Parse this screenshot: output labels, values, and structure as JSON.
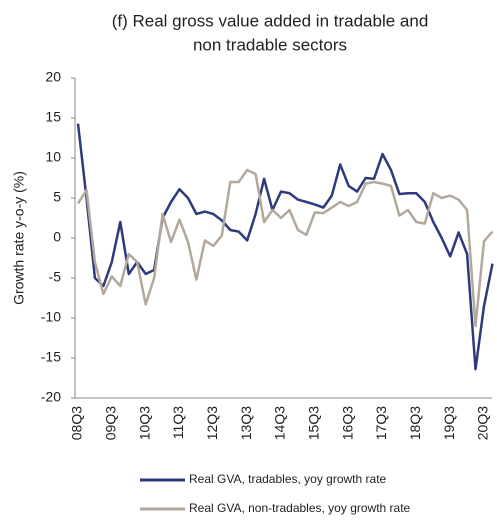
{
  "chart_data": {
    "type": "line",
    "title": [
      "(f) Real gross value added in tradable and",
      "non tradable sectors"
    ],
    "y_label": "Growth rate y-o-y (%)",
    "categories": [
      "08Q3",
      null,
      null,
      null,
      "09Q3",
      null,
      null,
      null,
      "10Q3",
      null,
      null,
      null,
      "11Q3",
      null,
      null,
      null,
      "12Q3",
      null,
      null,
      null,
      "13Q3",
      null,
      null,
      null,
      "14Q3",
      null,
      null,
      null,
      "15Q3",
      null,
      null,
      null,
      "16Q3",
      null,
      null,
      null,
      "17Q3",
      null,
      null,
      null,
      "18Q3",
      null,
      null,
      null,
      "19Q3",
      null,
      null,
      null,
      "20Q3",
      null
    ],
    "series": [
      {
        "name": "Real GVA, tradables, yoy growth rate",
        "color": "#2e3a7a",
        "values": [
          14.3,
          5,
          -5,
          -6,
          -3,
          2,
          -4.5,
          -3,
          -4.5,
          -4,
          2.5,
          4.5,
          6.1,
          5,
          3,
          3.3,
          3,
          2.2,
          1,
          0.8,
          -0.3,
          3,
          7.4,
          3.5,
          5.8,
          5.6,
          4.8,
          4.5,
          4.2,
          3.8,
          5.3,
          9.2,
          6.5,
          5.8,
          7.5,
          7.4,
          10.5,
          8.5,
          5.5,
          5.6,
          5.6,
          4.5,
          2,
          0,
          -2.3,
          0.7,
          -2,
          -16.4,
          -8.5,
          -3.2
        ]
      },
      {
        "name": "Real GVA, non-tradables, yoy growth rate",
        "color": "#b3a89c",
        "values": [
          4.3,
          6,
          -3,
          -7,
          -4.8,
          -6,
          -2,
          -3,
          -8.3,
          -5,
          3,
          -0.5,
          2.3,
          -0.5,
          -5.2,
          -0.3,
          -1,
          0.3,
          7,
          7,
          8.5,
          8,
          2,
          3.5,
          2.5,
          3.5,
          1,
          0.4,
          3.2,
          3.1,
          3.8,
          4.5,
          4,
          4.5,
          6.8,
          7,
          6.8,
          6.5,
          2.8,
          3.5,
          2,
          1.8,
          5.6,
          5,
          5.3,
          4.8,
          3.5,
          -11,
          -0.4,
          0.8
        ]
      }
    ],
    "ylim": [
      -20,
      20
    ],
    "yticks": [
      -20,
      -15,
      -10,
      -5,
      0,
      5,
      10,
      15,
      20
    ],
    "grid": false
  }
}
